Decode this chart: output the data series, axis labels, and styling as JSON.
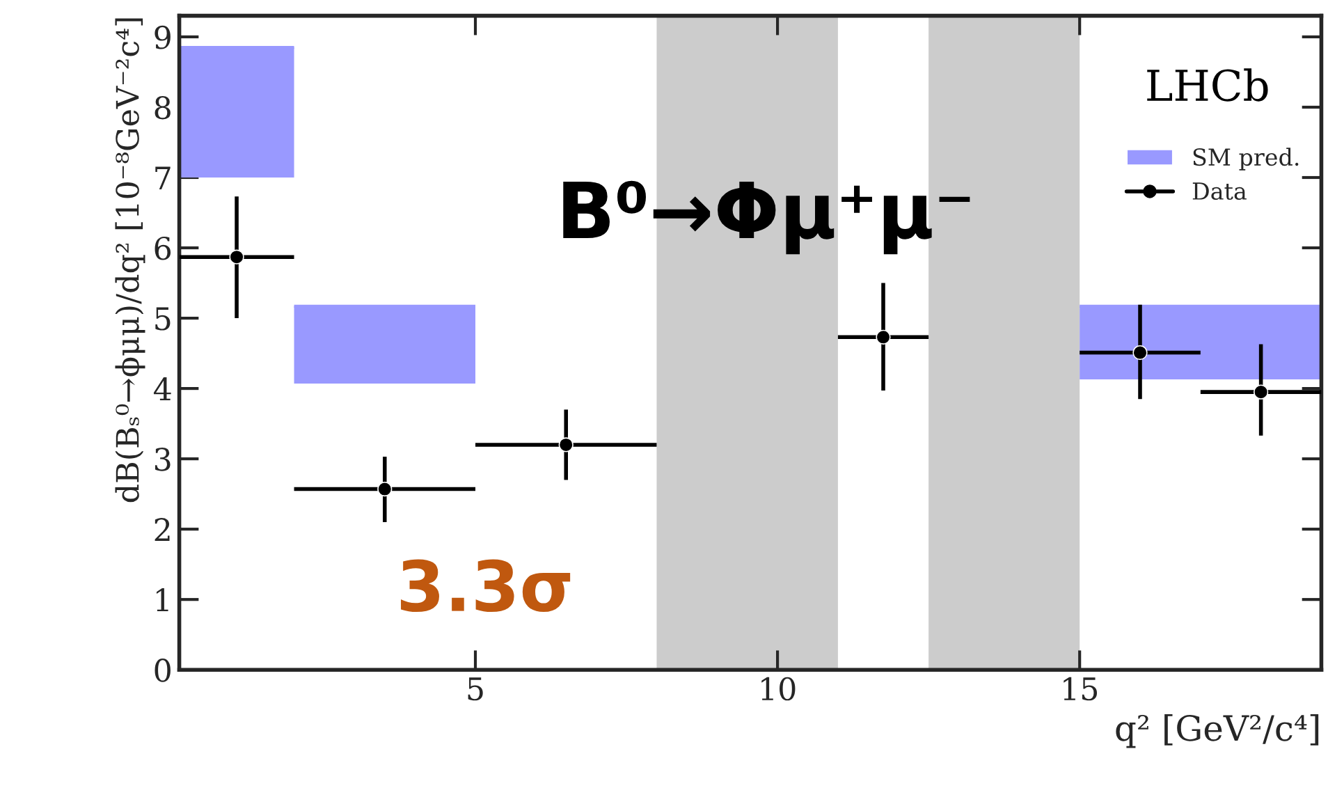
{
  "chart_data": {
    "type": "scatter",
    "xlabel": "q² [GeV²/c⁴]",
    "ylabel": "dB(Bₛ⁰→ϕμμ)/dq² [10⁻⁸GeV⁻²c⁴]",
    "annotations": [
      "LHCb",
      "B⁰→Φμ⁺μ⁻",
      "3.3σ"
    ],
    "series": [
      {
        "name": "SM pred.",
        "type": "bar",
        "color": "#9999ff",
        "x": [
          1.05,
          3.5,
          17
        ],
        "base": [
          7.0,
          4.07,
          4.13
        ],
        "values": [
          1.85,
          1.1,
          1.04
        ],
        "xerrors": [
          0.95,
          1.5,
          2
        ]
      },
      {
        "name": "Data",
        "color": "#000000",
        "x": [
          1.05,
          3.5,
          6.5,
          11.75,
          16,
          18
        ],
        "values": [
          5.87,
          2.57,
          3.2,
          4.73,
          4.51,
          3.95
        ],
        "errors": [
          [
            5.0,
            6.73
          ],
          [
            2.1,
            3.03
          ],
          [
            2.7,
            3.7
          ],
          [
            3.97,
            5.5
          ],
          [
            3.85,
            5.19
          ],
          [
            3.33,
            4.63
          ]
        ],
        "xerrors": [
          0.95,
          1.5,
          1.5,
          0.75,
          1,
          1
        ]
      }
    ],
    "bands": [
      {
        "axis": "x",
        "from": 8,
        "to": 11,
        "color": "#cccccc"
      },
      {
        "axis": "x",
        "from": 12.5,
        "to": 15,
        "color": "#cccccc"
      }
    ],
    "xlim": [
      0.1,
      19
    ],
    "xticks": [
      5,
      10,
      15
    ],
    "ylim": [
      0,
      9.3
    ],
    "yticks": [
      0,
      1,
      2,
      3,
      4,
      5,
      6,
      7,
      8,
      9
    ],
    "marker": "circle",
    "grid": false,
    "legend": "top right"
  }
}
